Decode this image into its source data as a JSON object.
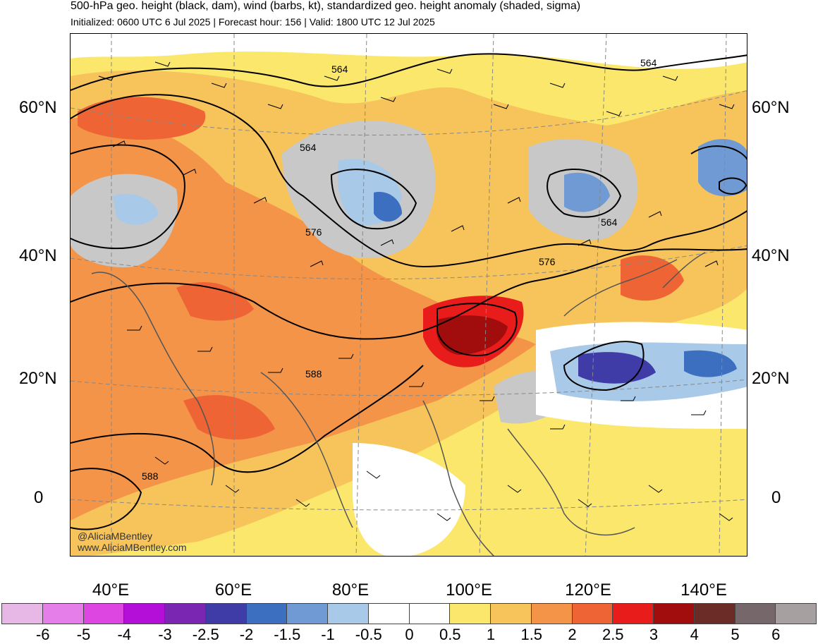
{
  "header": {
    "title": "500-hPa geo. height (black, dam), wind (barbs, kt), standardized geo. height anomaly (shaded, sigma)",
    "subtitle": "Initialized: 0600 UTC 6 Jul 2025 | Forecast hour: 156 | Valid: 1800 UTC 12 Jul 2025"
  },
  "map": {
    "lat_labels": [
      "60°N",
      "40°N",
      "20°N",
      "0"
    ],
    "lon_labels": [
      "40°E",
      "60°E",
      "80°E",
      "100°E",
      "120°E",
      "140°E"
    ],
    "contour_labels": [
      "564",
      "564",
      "564",
      "564",
      "576",
      "576",
      "588",
      "588"
    ],
    "watermark": [
      "@AliciaMBentley",
      "www.AliciaMBentley.com"
    ]
  },
  "colorbar": {
    "labels": [
      "-6",
      "-5",
      "-4",
      "-3",
      "-2.5",
      "-2",
      "-1.5",
      "-1",
      "-0.5",
      "0",
      "0.5",
      "1",
      "1.5",
      "2",
      "2.5",
      "3",
      "4",
      "5",
      "6"
    ],
    "colors": [
      "#e7b8e6",
      "#e57ee8",
      "#dd46e1",
      "#b40fd8",
      "#7b26b3",
      "#3f3ca8",
      "#3d6fc1",
      "#6f9ad4",
      "#a9c9e9",
      "#ffffff",
      "#ffffff",
      "#fbe76b",
      "#f6c45a",
      "#f39449",
      "#ef6434",
      "#e81c1a",
      "#a10c0c",
      "#6b2b27",
      "#76686a",
      "#a7a0a0"
    ]
  }
}
